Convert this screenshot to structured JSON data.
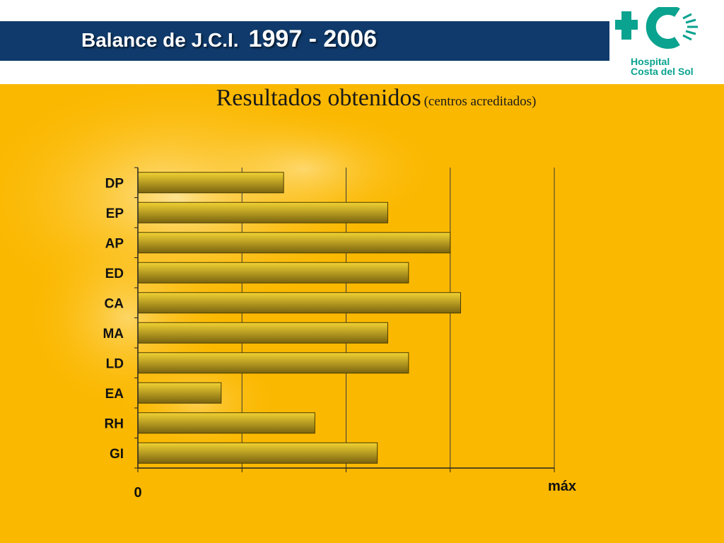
{
  "header": {
    "title_part1": "Balance  de J.C.I.",
    "title_part2": "1997 - 2006"
  },
  "logo": {
    "line1": "Hospital",
    "line2": "Costa del Sol",
    "color": "#0aa38f"
  },
  "subtitle": {
    "main": "Resultados obtenidos",
    "paren": "(centros acreditados)"
  },
  "colors": {
    "header_bg": "#0f3a6b",
    "slide_bg": "#fbb800",
    "bar_top": "#f2d233",
    "bar_bottom": "#7a6410"
  },
  "chart_data": {
    "type": "bar",
    "orientation": "horizontal",
    "categories": [
      "DP",
      "EP",
      "AP",
      "ED",
      "CA",
      "MA",
      "LD",
      "EA",
      "RH",
      "GI"
    ],
    "values": [
      0.35,
      0.6,
      0.75,
      0.65,
      0.775,
      0.6,
      0.65,
      0.2,
      0.425,
      0.575
    ],
    "xlim": [
      0,
      1
    ],
    "x_tick_labels": {
      "min": "0",
      "max": "máx"
    },
    "grid": true
  }
}
